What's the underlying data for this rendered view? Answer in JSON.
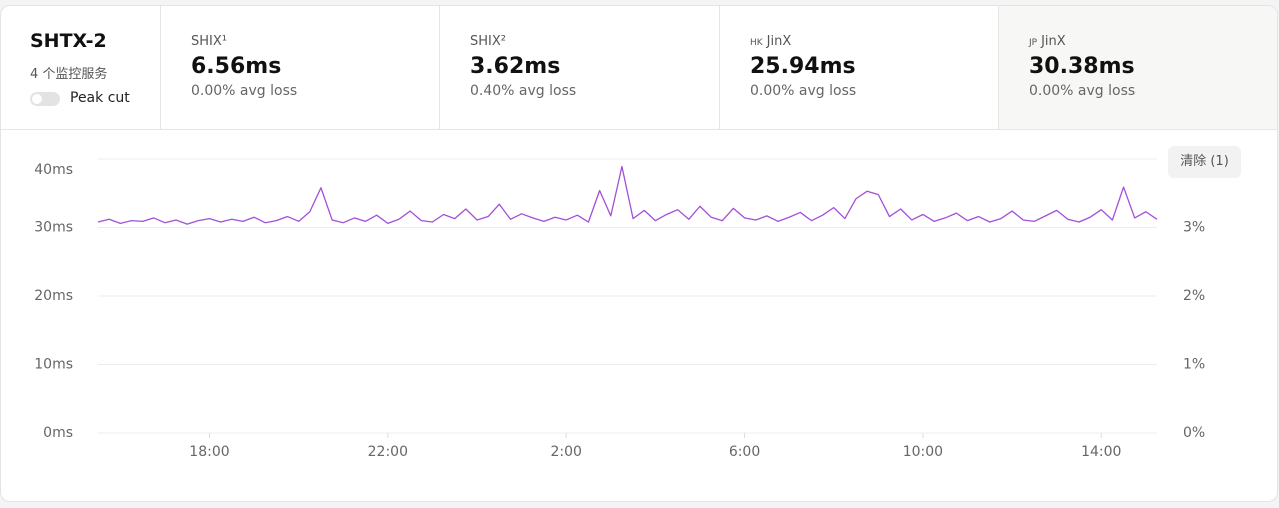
{
  "header": {
    "title": "SHTX-2",
    "subtitle": "4 个监控服务",
    "toggle": "Peak cut"
  },
  "monitors": [
    {
      "name": "SHIX¹",
      "latency": "6.56ms",
      "loss": "0.00% avg loss"
    },
    {
      "name": "SHIX²",
      "latency": "3.62ms",
      "loss": "0.40% avg loss"
    },
    {
      "flag": "HK",
      "name": "JinX",
      "latency": "25.94ms",
      "loss": "0.00% avg loss"
    },
    {
      "flag": "JP",
      "name": "JinX",
      "latency": "30.38ms",
      "loss": "0.00% avg loss"
    }
  ],
  "clear_button": "清除 (1)",
  "chart_data": {
    "type": "line",
    "x": [
      "15:30",
      "15:45",
      "16:00",
      "16:15",
      "16:30",
      "16:45",
      "17:00",
      "17:15",
      "17:30",
      "17:45",
      "18:00",
      "18:15",
      "18:30",
      "18:45",
      "19:00",
      "19:15",
      "19:30",
      "19:45",
      "20:00",
      "20:15",
      "20:30",
      "20:45",
      "21:00",
      "21:15",
      "21:30",
      "21:45",
      "22:00",
      "22:15",
      "22:30",
      "22:45",
      "23:00",
      "23:15",
      "23:30",
      "23:45",
      "0:00",
      "0:15",
      "0:30",
      "0:45",
      "1:00",
      "1:15",
      "1:30",
      "1:45",
      "2:00",
      "2:15",
      "2:30",
      "2:45",
      "3:00",
      "3:15",
      "3:30",
      "3:45",
      "4:00",
      "4:15",
      "4:30",
      "4:45",
      "5:00",
      "5:15",
      "5:30",
      "5:45",
      "6:00",
      "6:15",
      "6:30",
      "6:45",
      "7:00",
      "7:15",
      "7:30",
      "7:45",
      "8:00",
      "8:15",
      "8:30",
      "8:45",
      "9:00",
      "9:15",
      "9:30",
      "9:45",
      "10:00",
      "10:15",
      "10:30",
      "10:45",
      "11:00",
      "11:15",
      "11:30",
      "11:45",
      "12:00",
      "12:15",
      "12:30",
      "12:45",
      "13:00",
      "13:15",
      "13:30",
      "13:45",
      "14:00",
      "14:15",
      "14:30",
      "14:45",
      "15:00",
      "15:15"
    ],
    "series": [
      {
        "color": "#a24fd9",
        "values": [
          30.8,
          31.2,
          30.6,
          31.0,
          30.9,
          31.4,
          30.7,
          31.1,
          30.5,
          31.0,
          31.3,
          30.8,
          31.2,
          30.9,
          31.5,
          30.7,
          31.0,
          31.6,
          30.9,
          32.3,
          35.8,
          31.1,
          30.7,
          31.4,
          30.9,
          31.8,
          30.6,
          31.2,
          32.4,
          31.0,
          30.8,
          31.9,
          31.3,
          32.7,
          31.1,
          31.6,
          33.4,
          31.2,
          32.0,
          31.4,
          30.9,
          31.5,
          31.1,
          31.8,
          30.8,
          35.4,
          31.7,
          38.9,
          31.3,
          32.5,
          31.0,
          31.9,
          32.6,
          31.2,
          33.1,
          31.5,
          31.0,
          32.8,
          31.4,
          31.1,
          31.7,
          30.9,
          31.5,
          32.2,
          31.0,
          31.8,
          32.9,
          31.3,
          34.2,
          35.3,
          34.8,
          31.6,
          32.7,
          31.1,
          31.9,
          30.9,
          31.4,
          32.1,
          31.0,
          31.6,
          30.8,
          31.3,
          32.4,
          31.1,
          30.9,
          31.7,
          32.5,
          31.2,
          30.8,
          31.5,
          32.6,
          31.1,
          35.9,
          31.4,
          32.3,
          31.2
        ]
      }
    ],
    "xticks": [
      "18:00",
      "22:00",
      "2:00",
      "6:00",
      "10:00",
      "14:00"
    ],
    "ylim": [
      0,
      40
    ],
    "yticks": [
      {
        "value": 0,
        "label": "0ms"
      },
      {
        "value": 10,
        "label": "10ms"
      },
      {
        "value": 20,
        "label": "20ms"
      },
      {
        "value": 30,
        "label": "30ms"
      },
      {
        "value": 40,
        "label": "40ms"
      }
    ],
    "y2lim": [
      0,
      4
    ],
    "y2ticks": [
      {
        "value": 0,
        "label": "0%"
      },
      {
        "value": 1,
        "label": "1%"
      },
      {
        "value": 2,
        "label": "2%"
      },
      {
        "value": 3,
        "label": "3%"
      }
    ],
    "grid": true
  }
}
